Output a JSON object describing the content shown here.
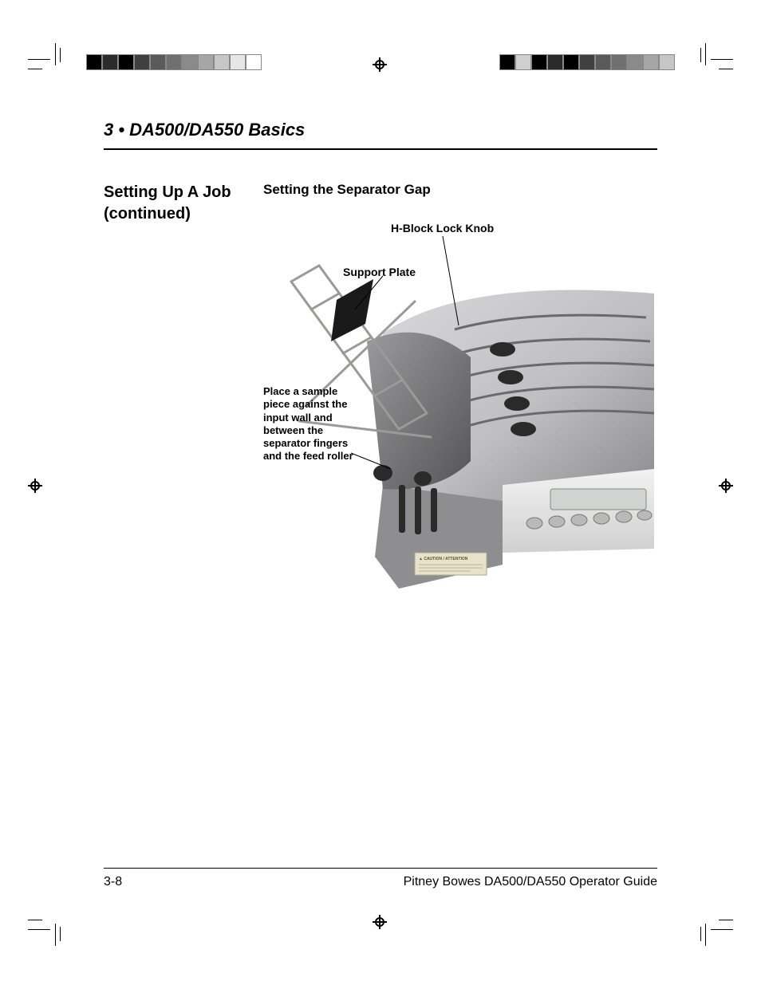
{
  "chapter_title": "3 • DA500/DA550 Basics",
  "side_heading": "Setting Up A Job (continued)",
  "sub_heading": "Setting the Separator Gap",
  "callouts": {
    "hblock": "H-Block Lock Knob",
    "support": "Support Plate",
    "instruction": "Place a sample piece against the input wall and between the separator fingers and the feed roller"
  },
  "footer": {
    "page_num": "3-8",
    "guide": "Pitney Bowes DA500/DA550  Operator Guide"
  },
  "colorbar_left": [
    "#000000",
    "#2b2b2b",
    "#000000",
    "#404040",
    "#5a5a5a",
    "#707070",
    "#8a8a8a",
    "#a6a6a6",
    "#c6c6c6",
    "#e6e6e6",
    "#ffffff"
  ],
  "colorbar_right": [
    "#000000",
    "#cfcfcf",
    "#000000",
    "#2b2b2b",
    "#000000",
    "#404040",
    "#5a5a5a",
    "#707070",
    "#8a8a8a",
    "#a6a6a6",
    "#c6c6c6"
  ],
  "machine": {
    "body_color": "#bfbfc1",
    "body_shadow": "#8a8a8c",
    "panel_color": "#e6e6e6",
    "tray_color": "#707072",
    "wire_color": "#9a9a98",
    "roller_color": "#303030",
    "display_color": "#cfd4d0",
    "button_color": "#b9b9b7",
    "caution_bg": "#e8e3c8",
    "caution_text": "#555533"
  }
}
